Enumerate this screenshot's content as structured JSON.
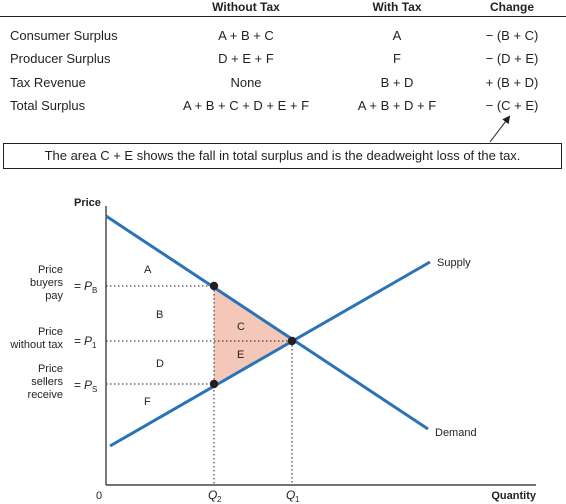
{
  "table": {
    "headers": {
      "without_tax": "Without Tax",
      "with_tax": "With Tax",
      "change": "Change"
    },
    "rows": [
      {
        "label": "Consumer Surplus",
        "without_tax": "A + B + C",
        "with_tax": "A",
        "change": "− (B + C)"
      },
      {
        "label": "Producer Surplus",
        "without_tax": "D + E + F",
        "with_tax": "F",
        "change": "− (D + E)"
      },
      {
        "label": "Tax Revenue",
        "without_tax": "None",
        "with_tax": "B + D",
        "change": "+ (B + D)"
      },
      {
        "label": "Total Surplus",
        "without_tax": "A + B + C + D + E + F",
        "with_tax": "A + B + D + F",
        "change": "− (C + E)"
      }
    ]
  },
  "note": "The area C + E shows the fall in total surplus and is the deadweight loss of the tax.",
  "diagram": {
    "y_axis_label": "Price",
    "x_axis_label": "Quantity",
    "origin_label": "0",
    "supply_label": "Supply",
    "demand_label": "Demand",
    "price_buyers": {
      "line1": "Price",
      "line2": "buyers",
      "line3": "pay",
      "symbol": "P",
      "sub": "B"
    },
    "price_no_tax": {
      "line1": "Price",
      "line2": "without tax",
      "symbol": "P",
      "sub": "1"
    },
    "price_sellers": {
      "line1": "Price",
      "line2": "sellers",
      "line3": "receive",
      "symbol": "P",
      "sub": "S"
    },
    "q2": {
      "symbol": "Q",
      "sub": "2"
    },
    "q1": {
      "symbol": "Q",
      "sub": "1"
    },
    "areas": {
      "A": "A",
      "B": "B",
      "C": "C",
      "D": "D",
      "E": "E",
      "F": "F"
    },
    "colors": {
      "curve": "#2a73b6",
      "deadweight": "#f4c7b9",
      "ink": "#231f20"
    }
  }
}
